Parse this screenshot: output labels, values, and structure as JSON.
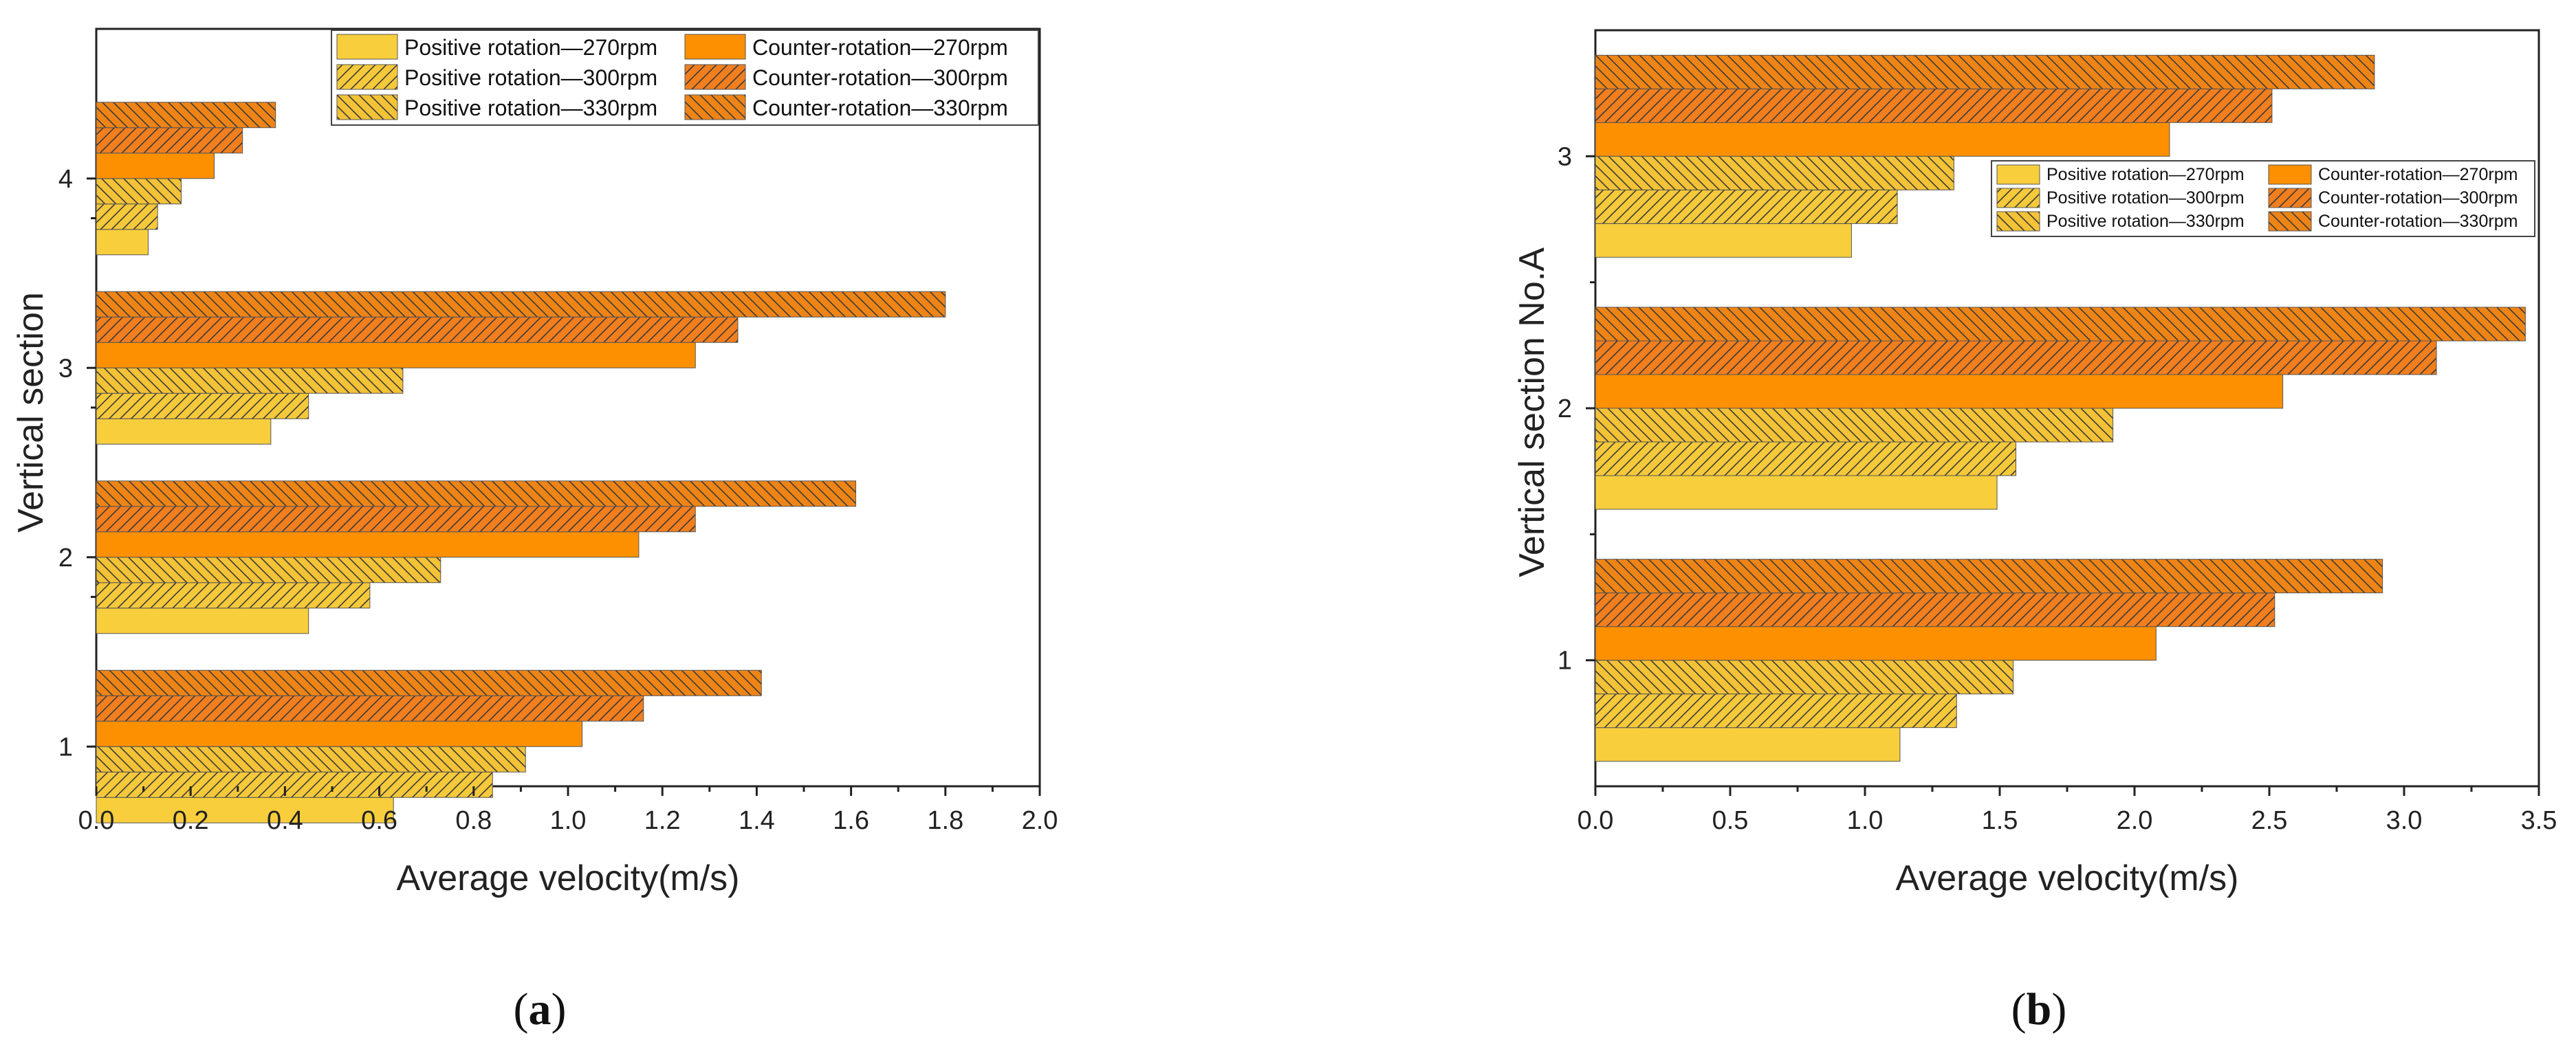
{
  "chart_data": [
    {
      "type": "bar",
      "orientation": "horizontal",
      "panel_label": "a",
      "xlabel": "Average velocity(m/s)",
      "ylabel": "Vertical section",
      "xlim": [
        0,
        2.0
      ],
      "xticks": [
        "0.0",
        "0.2",
        "0.4",
        "0.6",
        "0.8",
        "1.0",
        "1.2",
        "1.4",
        "1.6",
        "1.8",
        "2.0"
      ],
      "categories": [
        "1",
        "2",
        "3",
        "4"
      ],
      "legend_position": "top-right",
      "series": [
        {
          "name": "Positive rotation—270rpm",
          "values": [
            0.63,
            0.45,
            0.37,
            0.11
          ]
        },
        {
          "name": "Positive rotation—300rpm",
          "values": [
            0.84,
            0.58,
            0.45,
            0.13
          ]
        },
        {
          "name": "Positive rotation—330rpm",
          "values": [
            0.91,
            0.73,
            0.65,
            0.18
          ]
        },
        {
          "name": "Counter-rotation—270rpm",
          "values": [
            1.03,
            1.15,
            1.27,
            0.25
          ]
        },
        {
          "name": "Counter-rotation—300rpm",
          "values": [
            1.16,
            1.27,
            1.36,
            0.31
          ]
        },
        {
          "name": "Counter-rotation—330rpm",
          "values": [
            1.41,
            1.61,
            1.8,
            0.38
          ]
        }
      ]
    },
    {
      "type": "bar",
      "orientation": "horizontal",
      "panel_label": "b",
      "xlabel": "Average velocity(m/s)",
      "ylabel": "Vertical section No.A",
      "xlim": [
        0,
        3.5
      ],
      "xticks": [
        "0.0",
        "0.5",
        "1.0",
        "1.5",
        "2.0",
        "2.5",
        "3.0",
        "3.5"
      ],
      "categories": [
        "1",
        "2",
        "3"
      ],
      "legend_position": "top-right",
      "series": [
        {
          "name": "Positive rotation—270rpm",
          "values": [
            1.13,
            1.49,
            0.95
          ]
        },
        {
          "name": "Positive rotation—300rpm",
          "values": [
            1.34,
            1.56,
            1.12
          ]
        },
        {
          "name": "Positive rotation—330rpm",
          "values": [
            1.55,
            1.92,
            1.33
          ]
        },
        {
          "name": "Counter-rotation—270rpm",
          "values": [
            2.08,
            2.55,
            2.13
          ]
        },
        {
          "name": "Counter-rotation—300rpm",
          "values": [
            2.52,
            3.12,
            2.51
          ]
        },
        {
          "name": "Counter-rotation—330rpm",
          "values": [
            2.92,
            3.45,
            2.89
          ]
        }
      ]
    }
  ],
  "colors": {
    "pos_270": "#f8ce3c",
    "pos_300": "#f6c93a",
    "pos_330": "#f4c236",
    "ctr_270": "#fc9000",
    "ctr_300": "#f27e1e",
    "ctr_330": "#ef8416",
    "hatch": "#3a3a3a"
  }
}
